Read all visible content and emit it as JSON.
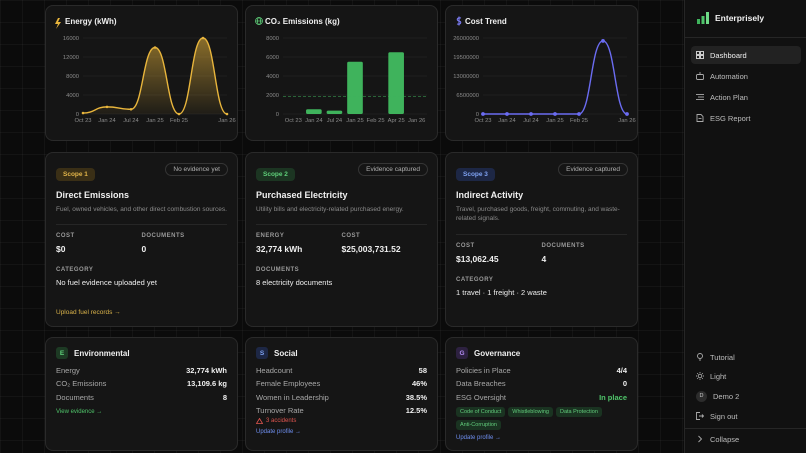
{
  "chart_data": [
    {
      "type": "area",
      "title": "Energy (kWh)",
      "color": "#e8b53c",
      "categories": [
        "Oct 23",
        "Jan 24",
        "Jul 24",
        "Jan 25",
        "Feb 25",
        null,
        "Jan 26"
      ],
      "values": [
        200,
        1500,
        1000,
        14000,
        0,
        16000,
        0
      ],
      "ylim": [
        0,
        16000
      ],
      "yticks": [
        0,
        4000,
        8000,
        12000,
        16000
      ],
      "grid": true
    },
    {
      "type": "bar",
      "title": "CO₂ Emissions (kg)",
      "color": "#3fb35c",
      "categories": [
        "Oct 23",
        "Jan 24",
        "Jul 24",
        "Jan 25",
        "Feb 25",
        "Apr 25",
        "Jan 26"
      ],
      "values": [
        0,
        500,
        350,
        5500,
        0,
        6500,
        0
      ],
      "reference_line": 1836,
      "ylim": [
        0,
        8000
      ],
      "yticks": [
        0,
        2000,
        4000,
        6000,
        8000
      ],
      "grid": true
    },
    {
      "type": "line",
      "title": "Cost Trend",
      "color": "#6b6cf2",
      "categories": [
        "Oct 23",
        "Jan 24",
        "Jul 24",
        "Jan 25",
        "Feb 25",
        null,
        "Jan 26"
      ],
      "values": [
        0,
        0,
        0,
        0,
        0,
        25000000,
        0
      ],
      "ylim": [
        0,
        26000000
      ],
      "yticks": [
        0,
        6500000,
        13000000,
        19500000,
        26000000
      ],
      "grid": true
    }
  ],
  "scopes": [
    {
      "badge": "Scope 1",
      "badge_color": "#e2b54a",
      "badge_bg": "#3a2f16",
      "status": "No evidence yet",
      "title": "Direct Emissions",
      "description": "Fuel, owned vehicles, and other direct combustion sources.",
      "fields": [
        {
          "label": "COST",
          "value": "$0"
        },
        {
          "label": "DOCUMENTS",
          "value": "0"
        }
      ],
      "section": {
        "label": "CATEGORY",
        "value": "No fuel evidence uploaded yet"
      },
      "link": "Upload fuel records →"
    },
    {
      "badge": "Scope 2",
      "badge_color": "#5fd07a",
      "badge_bg": "#1c3522",
      "status": "Evidence captured",
      "title": "Purchased Electricity",
      "description": "Utility bills and electricity-related purchased energy.",
      "fields": [
        {
          "label": "ENERGY",
          "value": "32,774 kWh"
        },
        {
          "label": "COST",
          "value": "$25,003,731.52"
        }
      ],
      "section": {
        "label": "DOCUMENTS",
        "value": "8 electricity documents"
      }
    },
    {
      "badge": "Scope 3",
      "badge_color": "#7fa2f2",
      "badge_bg": "#1d2745",
      "status": "Evidence captured",
      "title": "Indirect Activity",
      "description": "Travel, purchased goods, freight, commuting, and waste-related signals.",
      "fields": [
        {
          "label": "COST",
          "value": "$13,062.45"
        },
        {
          "label": "DOCUMENTS",
          "value": "4"
        }
      ],
      "section": {
        "label": "CATEGORY",
        "value": "1 travel · 1 freight · 2 waste"
      }
    }
  ],
  "panels": [
    {
      "icon": "E",
      "icon_color": "#5fd07a",
      "icon_bg": "#1d3a24",
      "title": "Environmental",
      "rows": [
        {
          "label": "Energy",
          "value": "32,774 kWh"
        },
        {
          "label": "CO₂ Emissions",
          "value": "13,109.6 kg"
        },
        {
          "label": "Documents",
          "value": "8"
        }
      ],
      "link": "View evidence →",
      "link_color": "#4fc46a"
    },
    {
      "icon": "S",
      "icon_color": "#7fa2f2",
      "icon_bg": "#1d2745",
      "title": "Social",
      "rows": [
        {
          "label": "Headcount",
          "value": "58"
        },
        {
          "label": "Female Employees",
          "value": "46%"
        },
        {
          "label": "Women in Leadership",
          "value": "38.5%"
        },
        {
          "label": "Turnover Rate",
          "value": "12.5%"
        }
      ],
      "warning": "3 accidents",
      "link": "Update profile →",
      "link_color": "#6f8ff0"
    },
    {
      "icon": "G",
      "icon_color": "#b38cf2",
      "icon_bg": "#2d2140",
      "title": "Governance",
      "rows": [
        {
          "label": "Policies in Place",
          "value": "4/4"
        },
        {
          "label": "Data Breaches",
          "value": "0"
        },
        {
          "label": "ESG Oversight",
          "value": "In place",
          "color": "#4fc46a"
        }
      ],
      "tags": [
        "Code of Conduct",
        "Whistleblowing",
        "Data Protection",
        "Anti-Corruption"
      ],
      "link": "Update profile →",
      "link_color": "#6f8ff0"
    }
  ],
  "sidebar": {
    "brand": "Enterprisely",
    "nav": [
      "Dashboard",
      "Automation",
      "Action Plan",
      "ESG Report"
    ],
    "tutorial": "Tutorial",
    "theme": "Light",
    "avatar": "D",
    "user": "Demo 2",
    "sign_out": "Sign out",
    "collapse": "Collapse"
  }
}
